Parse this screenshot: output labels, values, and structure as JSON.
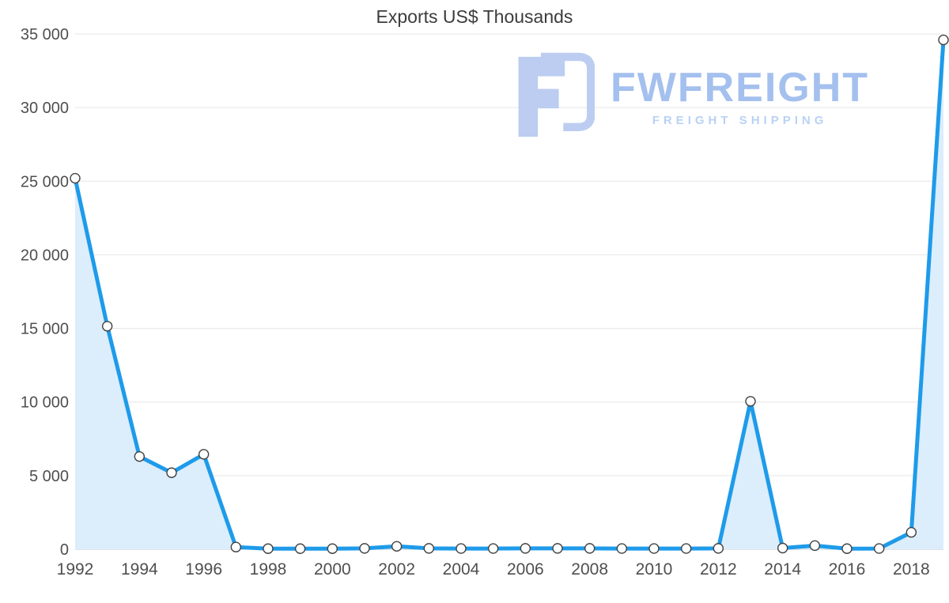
{
  "chart_data": {
    "type": "area",
    "title": "Exports US$ Thousands",
    "xlabel": "",
    "ylabel": "",
    "legend": "none",
    "grid": "horizontal",
    "x": [
      1992,
      1993,
      1994,
      1995,
      1996,
      1997,
      1998,
      1999,
      2000,
      2001,
      2002,
      2003,
      2004,
      2005,
      2006,
      2007,
      2008,
      2009,
      2010,
      2011,
      2012,
      2013,
      2014,
      2015,
      2016,
      2017,
      2018,
      2019
    ],
    "series": [
      {
        "name": "Exports",
        "values": [
          25200,
          15150,
          6300,
          5200,
          6450,
          150,
          40,
          40,
          40,
          60,
          200,
          60,
          50,
          50,
          60,
          60,
          60,
          50,
          50,
          50,
          60,
          10050,
          80,
          250,
          40,
          50,
          1150,
          34600
        ]
      }
    ],
    "ylim": [
      0,
      35000
    ],
    "yticks": [
      0,
      5000,
      10000,
      15000,
      20000,
      25000,
      30000,
      35000
    ],
    "ytick_labels": [
      "0",
      "5 000",
      "10 000",
      "15 000",
      "20 000",
      "25 000",
      "30 000",
      "35 000"
    ],
    "xtick_years": [
      1992,
      1994,
      1996,
      1998,
      2000,
      2002,
      2004,
      2006,
      2008,
      2010,
      2012,
      2014,
      2016,
      2018
    ],
    "xtick_labels": [
      "1992",
      "1994",
      "1996",
      "1998",
      "2000",
      "2002",
      "2004",
      "2006",
      "2008",
      "2010",
      "2012",
      "2014",
      "2016",
      "2018"
    ],
    "colors": {
      "line": "#1e9bea",
      "fill": "#dcedfb",
      "marker_fill": "#ffffff",
      "marker_stroke": "#424242",
      "grid": "#e6e6e6",
      "baseline": "#c9c9c9",
      "axis_text": "#4f4f4f",
      "title_text": "#3c3c3c"
    }
  },
  "watermark": {
    "brand": "FWFREIGHT",
    "tagline": "FREIGHT SHIPPING",
    "colors": {
      "brand": "#a4c0ee",
      "tagline": "#b9d2f4",
      "icon": "#bccdf1"
    }
  }
}
